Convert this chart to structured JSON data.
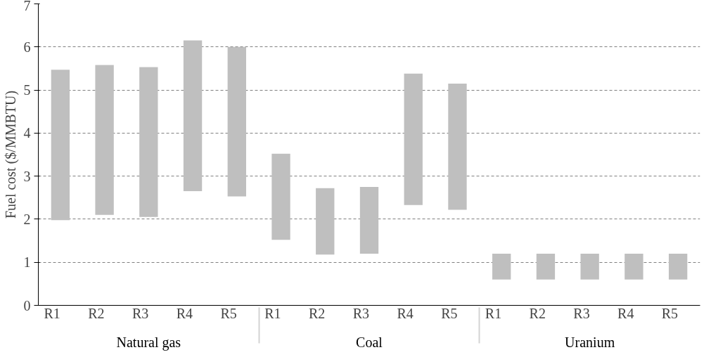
{
  "chart_data": {
    "type": "bar",
    "ylabel": "Fuel cost ($/MMBTU)",
    "categories": [
      "R1",
      "R2",
      "R3",
      "R4",
      "R5",
      "R1",
      "R2",
      "R3",
      "R4",
      "R5",
      "R1",
      "R2",
      "R3",
      "R4",
      "R5"
    ],
    "base": [
      1.98,
      2.1,
      2.05,
      2.65,
      2.53,
      1.52,
      1.18,
      1.2,
      2.33,
      2.22,
      0.6,
      0.6,
      0.6,
      0.6,
      0.6
    ],
    "values": [
      3.49,
      3.48,
      3.48,
      3.5,
      3.47,
      2.0,
      1.54,
      1.55,
      3.05,
      2.93,
      0.6,
      0.6,
      0.6,
      0.6,
      0.6
    ],
    "color": "#bfbfbf",
    "annotations": [
      "Natural gas",
      "Coal",
      "Uranium"
    ],
    "ylim": [
      0,
      7
    ],
    "yticks": [
      0,
      1,
      2,
      3,
      4,
      5,
      6,
      7
    ],
    "grid": "y"
  }
}
